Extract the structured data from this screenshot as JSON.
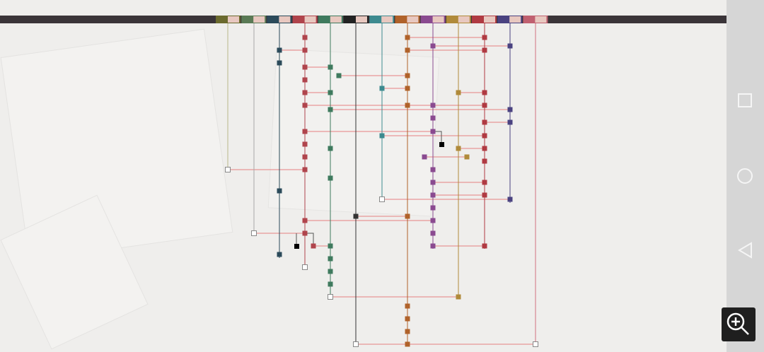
{
  "top_bar": {
    "tabs": [
      {
        "color": "#6b6a2e"
      },
      {
        "color": "#5a7a55"
      },
      {
        "color": "#2b4a5a"
      },
      {
        "color": "#b0444c"
      },
      {
        "color": "#3f7a5e"
      },
      {
        "color": "#222222"
      },
      {
        "color": "#3d8a8f"
      },
      {
        "color": "#b0622a"
      },
      {
        "color": "#8a4a90"
      },
      {
        "color": "#b08a3a"
      },
      {
        "color": "#b03a42"
      },
      {
        "color": "#4a4280"
      },
      {
        "color": "#c06070"
      }
    ]
  },
  "lanes": [
    {
      "color": "#b8b88a"
    },
    {
      "color": "#a8a8a8"
    },
    {
      "color": "#2b4a5a"
    },
    {
      "color": "#b0444c"
    },
    {
      "color": "#3f7a5e"
    },
    {
      "color": "#333333"
    },
    {
      "color": "#3d8a8f"
    },
    {
      "color": "#b0622a"
    },
    {
      "color": "#8a4a90"
    },
    {
      "color": "#b08a3a"
    },
    {
      "color": "#b03a42"
    },
    {
      "color": "#4a4280"
    },
    {
      "color": "#d07080"
    }
  ],
  "connector_color": "#e58080"
}
